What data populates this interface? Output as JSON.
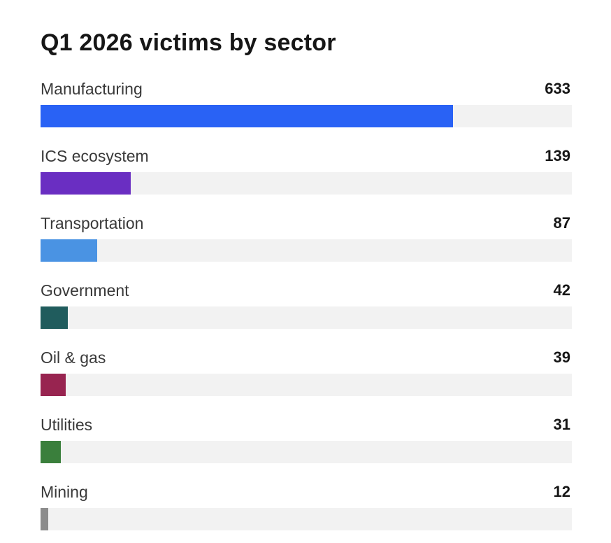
{
  "chart_data": {
    "type": "bar",
    "orientation": "horizontal",
    "title": "Q1 2026 victims by sector",
    "categories": [
      "Manufacturing",
      "ICS ecosystem",
      "Transportation",
      "Government",
      "Oil & gas",
      "Utilities",
      "Mining"
    ],
    "values": [
      633,
      139,
      87,
      42,
      39,
      31,
      12
    ],
    "value_labels": [
      "633",
      "139",
      "87",
      "42",
      "39",
      "31",
      "12"
    ],
    "colors": [
      "#2962f5",
      "#6a2ec2",
      "#4a93e3",
      "#205c5d",
      "#982450",
      "#3a7f3c",
      "#8c8c8c"
    ],
    "track_color": "#f2f2f2",
    "xlim": [
      0,
      816
    ],
    "grid": false,
    "legend": "none"
  }
}
